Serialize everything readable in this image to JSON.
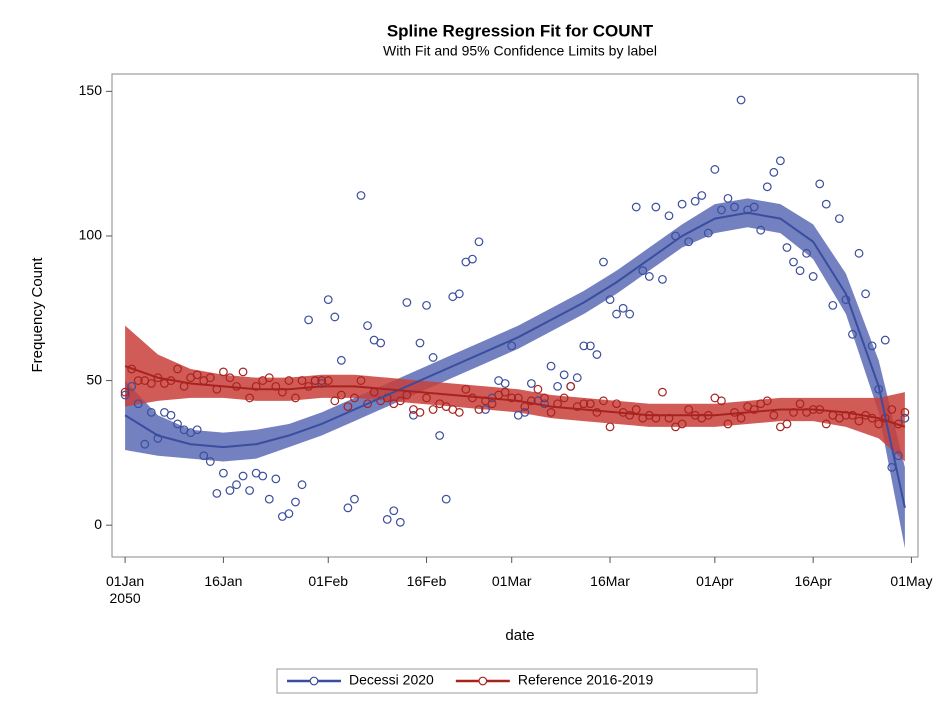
{
  "chart_data": {
    "type": "scatter",
    "title": "Spline Regression Fit for COUNT",
    "subtitle": "With Fit and 95% Confidence Limits by label",
    "x_label": "date",
    "y_label": "Frequency Count",
    "xlim": [
      "2049-12-30",
      "2050-05-02"
    ],
    "xticks": [
      {
        "value": "2050-01-01",
        "label": "01Jan\n2050"
      },
      {
        "value": "2050-01-16",
        "label": "16Jan"
      },
      {
        "value": "2050-02-01",
        "label": "01Feb"
      },
      {
        "value": "2050-02-16",
        "label": "16Feb"
      },
      {
        "value": "2050-03-01",
        "label": "01Mar"
      },
      {
        "value": "2050-03-16",
        "label": "16Mar"
      },
      {
        "value": "2050-04-01",
        "label": "01Apr"
      },
      {
        "value": "2050-04-16",
        "label": "16Apr"
      },
      {
        "value": "2050-05-01",
        "label": "01May"
      }
    ],
    "ylim": [
      -11,
      156
    ],
    "yticks": [
      0,
      50,
      100,
      150
    ],
    "x": [
      "2050-01-01",
      "2050-01-02",
      "2050-01-03",
      "2050-01-04",
      "2050-01-05",
      "2050-01-06",
      "2050-01-07",
      "2050-01-08",
      "2050-01-09",
      "2050-01-10",
      "2050-01-11",
      "2050-01-12",
      "2050-01-13",
      "2050-01-14",
      "2050-01-15",
      "2050-01-16",
      "2050-01-17",
      "2050-01-18",
      "2050-01-19",
      "2050-01-20",
      "2050-01-21",
      "2050-01-22",
      "2050-01-23",
      "2050-01-24",
      "2050-01-25",
      "2050-01-26",
      "2050-01-27",
      "2050-01-28",
      "2050-01-29",
      "2050-01-30",
      "2050-01-31",
      "2050-02-01",
      "2050-02-02",
      "2050-02-03",
      "2050-02-04",
      "2050-02-05",
      "2050-02-06",
      "2050-02-07",
      "2050-02-08",
      "2050-02-09",
      "2050-02-10",
      "2050-02-11",
      "2050-02-12",
      "2050-02-13",
      "2050-02-14",
      "2050-02-15",
      "2050-02-16",
      "2050-02-17",
      "2050-02-18",
      "2050-02-19",
      "2050-02-20",
      "2050-02-21",
      "2050-02-22",
      "2050-02-23",
      "2050-02-24",
      "2050-02-25",
      "2050-02-26",
      "2050-02-27",
      "2050-02-28",
      "2050-03-01",
      "2050-03-02",
      "2050-03-03",
      "2050-03-04",
      "2050-03-05",
      "2050-03-06",
      "2050-03-07",
      "2050-03-08",
      "2050-03-09",
      "2050-03-10",
      "2050-03-11",
      "2050-03-12",
      "2050-03-13",
      "2050-03-14",
      "2050-03-15",
      "2050-03-16",
      "2050-03-17",
      "2050-03-18",
      "2050-03-19",
      "2050-03-20",
      "2050-03-21",
      "2050-03-22",
      "2050-03-23",
      "2050-03-24",
      "2050-03-25",
      "2050-03-26",
      "2050-03-27",
      "2050-03-28",
      "2050-03-29",
      "2050-03-30",
      "2050-03-31",
      "2050-04-01",
      "2050-04-02",
      "2050-04-03",
      "2050-04-04",
      "2050-04-05",
      "2050-04-06",
      "2050-04-07",
      "2050-04-08",
      "2050-04-09",
      "2050-04-10",
      "2050-04-11",
      "2050-04-12",
      "2050-04-13",
      "2050-04-14",
      "2050-04-15",
      "2050-04-16",
      "2050-04-17",
      "2050-04-18",
      "2050-04-19",
      "2050-04-20",
      "2050-04-21",
      "2050-04-22",
      "2050-04-23",
      "2050-04-24",
      "2050-04-25",
      "2050-04-26",
      "2050-04-27",
      "2050-04-28",
      "2050-04-29",
      "2050-04-30"
    ],
    "series": [
      {
        "name": "Decessi 2020",
        "color": "#3b4d9e",
        "band_color": "#5a6bb5",
        "values": [
          45,
          48,
          42,
          28,
          39,
          30,
          39,
          38,
          35,
          33,
          32,
          33,
          24,
          22,
          11,
          18,
          12,
          14,
          17,
          12,
          18,
          17,
          9,
          16,
          3,
          4,
          8,
          14,
          71,
          50,
          49,
          78,
          72,
          57,
          6,
          9,
          114,
          69,
          64,
          63,
          2,
          5,
          1,
          77,
          38,
          63,
          76,
          58,
          31,
          9,
          79,
          80,
          91,
          92,
          98,
          40,
          44,
          50,
          49,
          62,
          38,
          39,
          49,
          43,
          42,
          55,
          48,
          52,
          48,
          51,
          62,
          62,
          59,
          91,
          78,
          73,
          75,
          73,
          110,
          88,
          86,
          110,
          85,
          107,
          100,
          111,
          98,
          112,
          114,
          101,
          123,
          109,
          113,
          110,
          147,
          109,
          110,
          102,
          117,
          122,
          126,
          96,
          91,
          88,
          94,
          86,
          118,
          111,
          76,
          106,
          78,
          66,
          94,
          80,
          62,
          47,
          64,
          20,
          24,
          37
        ]
      },
      {
        "name": "Reference 2016-2019",
        "color": "#a8231f",
        "band_color": "#c9403a",
        "values": [
          46,
          54,
          50,
          50,
          49,
          51,
          49,
          50,
          54,
          48,
          51,
          52,
          50,
          51,
          47,
          53,
          51,
          48,
          53,
          44,
          48,
          50,
          51,
          48,
          46,
          50,
          44,
          50,
          48,
          50,
          50,
          50,
          43,
          45,
          41,
          44,
          50,
          42,
          46,
          43,
          44,
          42,
          43,
          45,
          40,
          39,
          44,
          40,
          42,
          41,
          40,
          39,
          47,
          44,
          40,
          43,
          42,
          45,
          46,
          44,
          44,
          41,
          43,
          47,
          44,
          39,
          42,
          44,
          48,
          41,
          42,
          42,
          39,
          43,
          34,
          42,
          39,
          38,
          40,
          37,
          38,
          37,
          46,
          37,
          34,
          35,
          40,
          38,
          37,
          38,
          44,
          43,
          35,
          39,
          37,
          41,
          40,
          42,
          43,
          38,
          34,
          35,
          39,
          42,
          39,
          40,
          40,
          35,
          38,
          37,
          38,
          38,
          36,
          38,
          37,
          35,
          37,
          40,
          35,
          39
        ]
      }
    ],
    "fit_x": [
      "2050-01-01",
      "2050-01-06",
      "2050-01-11",
      "2050-01-16",
      "2050-01-21",
      "2050-01-26",
      "2050-01-31",
      "2050-02-05",
      "2050-02-10",
      "2050-02-15",
      "2050-02-20",
      "2050-02-25",
      "2050-03-02",
      "2050-03-07",
      "2050-03-12",
      "2050-03-17",
      "2050-03-22",
      "2050-03-27",
      "2050-04-01",
      "2050-04-06",
      "2050-04-11",
      "2050-04-16",
      "2050-04-21",
      "2050-04-26",
      "2050-04-30"
    ],
    "fits": [
      {
        "fit": [
          38,
          31,
          28,
          27,
          28,
          31,
          35,
          40,
          45,
          50,
          55,
          60,
          65,
          71,
          77,
          84,
          92,
          100,
          106,
          108,
          106,
          98,
          80,
          48,
          6
        ],
        "lower": [
          26,
          24,
          23,
          22,
          23,
          27,
          31,
          36,
          41,
          46,
          51,
          56,
          61,
          67,
          73,
          80,
          88,
          96,
          101,
          103,
          101,
          92,
          73,
          39,
          -8
        ],
        "upper": [
          50,
          38,
          33,
          32,
          33,
          35,
          39,
          44,
          49,
          54,
          59,
          64,
          69,
          75,
          81,
          88,
          96,
          104,
          111,
          113,
          111,
          104,
          87,
          57,
          20
        ]
      },
      {
        "fit": [
          55,
          51,
          49,
          48,
          47,
          47,
          48,
          48,
          47,
          46,
          45,
          44,
          43,
          41,
          40,
          39,
          38,
          38,
          38,
          39,
          40,
          40,
          39,
          37,
          34
        ],
        "lower": [
          41,
          43,
          44,
          44,
          43,
          43,
          44,
          44,
          43,
          42,
          41,
          40,
          39,
          37,
          36,
          35,
          34,
          34,
          34,
          35,
          36,
          36,
          34,
          30,
          22
        ],
        "upper": [
          69,
          59,
          54,
          52,
          51,
          51,
          52,
          52,
          51,
          50,
          49,
          48,
          47,
          45,
          44,
          43,
          42,
          42,
          42,
          43,
          44,
          44,
          44,
          44,
          46
        ]
      }
    ]
  }
}
